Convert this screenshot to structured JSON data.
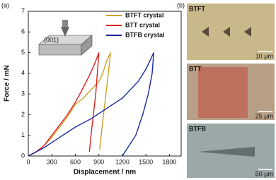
{
  "chart_data": {
    "type": "line",
    "panel_label": "(a)",
    "xlabel": "Displacement / nm",
    "ylabel": "Force / mN",
    "xlim": [
      0,
      1950
    ],
    "ylim": [
      0,
      7
    ],
    "xticks": [
      0,
      300,
      600,
      900,
      1200,
      1500,
      1800
    ],
    "yticks": [
      0,
      1,
      2,
      3,
      4,
      5,
      6,
      7
    ],
    "inset_label": "(001)",
    "legend": "upper right",
    "series": [
      {
        "name": "BTFT crystal",
        "color": "#c9a227",
        "x": [
          0,
          100,
          200,
          300,
          400,
          500,
          600,
          700,
          800,
          900,
          950,
          1000,
          1050,
          1020,
          990,
          960,
          930,
          910
        ],
        "values": [
          0,
          0.2,
          0.5,
          0.9,
          1.4,
          1.9,
          2.5,
          2.8,
          3.2,
          3.6,
          4.0,
          4.6,
          5.0,
          4.0,
          3.0,
          2.0,
          1.0,
          0.3
        ]
      },
      {
        "name": "BTT crystal",
        "color": "#e02020",
        "x": [
          0,
          100,
          200,
          300,
          400,
          500,
          600,
          700,
          780,
          850,
          900,
          880,
          860,
          830,
          800,
          780
        ],
        "values": [
          0,
          0.2,
          0.5,
          1.0,
          1.5,
          2.0,
          2.6,
          3.3,
          3.9,
          4.5,
          5.0,
          4.0,
          3.0,
          2.0,
          1.0,
          0.2
        ]
      },
      {
        "name": "BTFB crystal",
        "color": "#1a2a9a",
        "x": [
          0,
          200,
          400,
          600,
          800,
          1000,
          1200,
          1400,
          1500,
          1600,
          1580,
          1530,
          1460,
          1370,
          1250,
          1200
        ],
        "values": [
          0,
          0.4,
          0.9,
          1.4,
          1.8,
          2.3,
          2.8,
          3.6,
          4.2,
          5.0,
          4.0,
          3.0,
          2.0,
          1.0,
          0.3,
          0
        ]
      }
    ]
  },
  "images": {
    "panel_label": "(b)",
    "panels": [
      {
        "label": "BTFT",
        "scale": "10 μm"
      },
      {
        "label": "BTT",
        "scale": "25 μm"
      },
      {
        "label": "BTFB",
        "scale": "50 μm"
      }
    ]
  }
}
